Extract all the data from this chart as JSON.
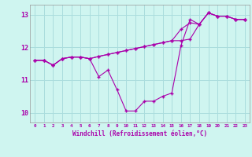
{
  "xlabel": "Windchill (Refroidissement éolien,°C)",
  "xlim": [
    -0.5,
    23.5
  ],
  "ylim": [
    9.7,
    13.3
  ],
  "yticks": [
    10,
    11,
    12,
    13
  ],
  "xticks": [
    0,
    1,
    2,
    3,
    4,
    5,
    6,
    7,
    8,
    9,
    10,
    11,
    12,
    13,
    14,
    15,
    16,
    17,
    18,
    19,
    20,
    21,
    22,
    23
  ],
  "background_color": "#cff5f0",
  "grid_color": "#aadddd",
  "line_color": "#aa00aa",
  "series1": [
    11.6,
    11.6,
    11.45,
    11.65,
    11.7,
    11.7,
    11.65,
    11.1,
    11.3,
    10.7,
    10.05,
    10.05,
    10.35,
    10.35,
    10.5,
    10.6,
    12.05,
    12.85,
    12.7,
    13.05,
    12.95,
    12.95,
    12.85,
    12.85
  ],
  "series2": [
    11.6,
    11.6,
    11.45,
    11.65,
    11.7,
    11.7,
    11.65,
    11.72,
    11.78,
    11.84,
    11.9,
    11.96,
    12.02,
    12.08,
    12.14,
    12.2,
    12.55,
    12.75,
    12.7,
    13.05,
    12.95,
    12.95,
    12.85,
    12.85
  ],
  "series3": [
    11.6,
    11.6,
    11.45,
    11.65,
    11.7,
    11.7,
    11.65,
    11.72,
    11.78,
    11.84,
    11.9,
    11.96,
    12.02,
    12.08,
    12.14,
    12.2,
    12.2,
    12.25,
    12.7,
    13.05,
    12.95,
    12.95,
    12.85,
    12.85
  ]
}
